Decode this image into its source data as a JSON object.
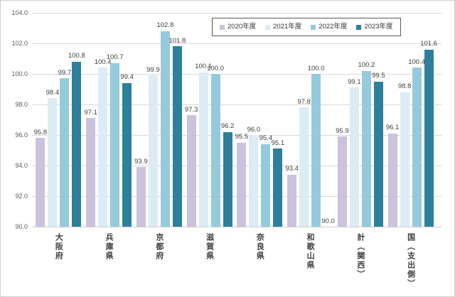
{
  "chart_data": {
    "type": "bar",
    "title": "",
    "categories": [
      "大阪府",
      "兵庫県",
      "京都府",
      "滋賀県",
      "奈良県",
      "和歌山県",
      "計（関西）",
      "国（支出側）"
    ],
    "series": [
      {
        "name": "2020年度",
        "color": "#cbc2dd",
        "values": [
          95.8,
          97.1,
          93.9,
          97.3,
          95.5,
          93.4,
          95.9,
          96.1
        ]
      },
      {
        "name": "2021年度",
        "color": "#dbecf4",
        "values": [
          98.4,
          100.4,
          99.9,
          100.1,
          96.0,
          97.8,
          99.1,
          98.8
        ]
      },
      {
        "name": "2022年度",
        "color": "#95cadd",
        "values": [
          99.7,
          100.7,
          102.8,
          100.0,
          95.4,
          100.0,
          100.2,
          100.4
        ]
      },
      {
        "name": "2023年度",
        "color": "#2e7f9c",
        "values": [
          100.8,
          99.4,
          101.8,
          96.2,
          95.1,
          90.0,
          99.5,
          101.6
        ]
      }
    ],
    "ylim": [
      90,
      104
    ],
    "ytick_step": 2,
    "yticks": [
      "104.0",
      "102.0",
      "100.0",
      "98.0",
      "96.0",
      "94.0",
      "92.0",
      "90.0"
    ],
    "grid": true,
    "legend_position": "top-right",
    "value_labels": true,
    "value_label_decimals": 1,
    "xlabel": "",
    "ylabel": ""
  }
}
